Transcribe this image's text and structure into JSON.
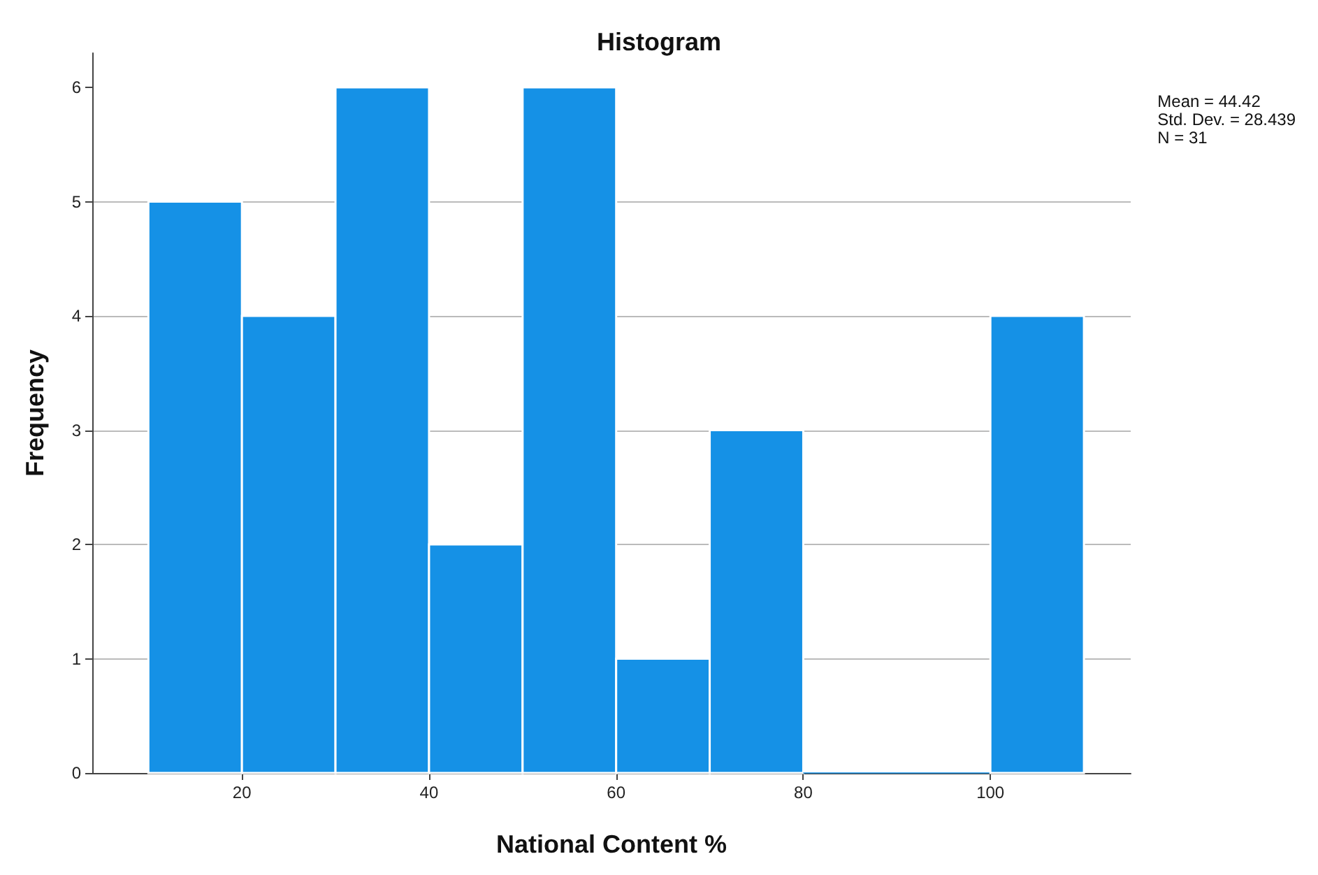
{
  "chart_data": {
    "type": "histogram",
    "title": "Histogram",
    "xlabel": "National Content %",
    "ylabel": "Frequency",
    "bins": [
      10,
      20,
      30,
      40,
      50,
      60,
      70,
      80,
      90,
      100,
      110
    ],
    "values": [
      5,
      4,
      6,
      2,
      6,
      1,
      3,
      0,
      0,
      4
    ],
    "color": "#1591e6",
    "xlim": [
      4,
      115
    ],
    "xticks": [
      20,
      40,
      60,
      80,
      100
    ],
    "ylim": [
      0,
      6.3
    ],
    "yticks": [
      0,
      1,
      2,
      3,
      4,
      5,
      6
    ],
    "grid": "y",
    "annotations": [
      "Mean = 44.42",
      "Std. Dev. = 28.439",
      "N = 31"
    ]
  }
}
